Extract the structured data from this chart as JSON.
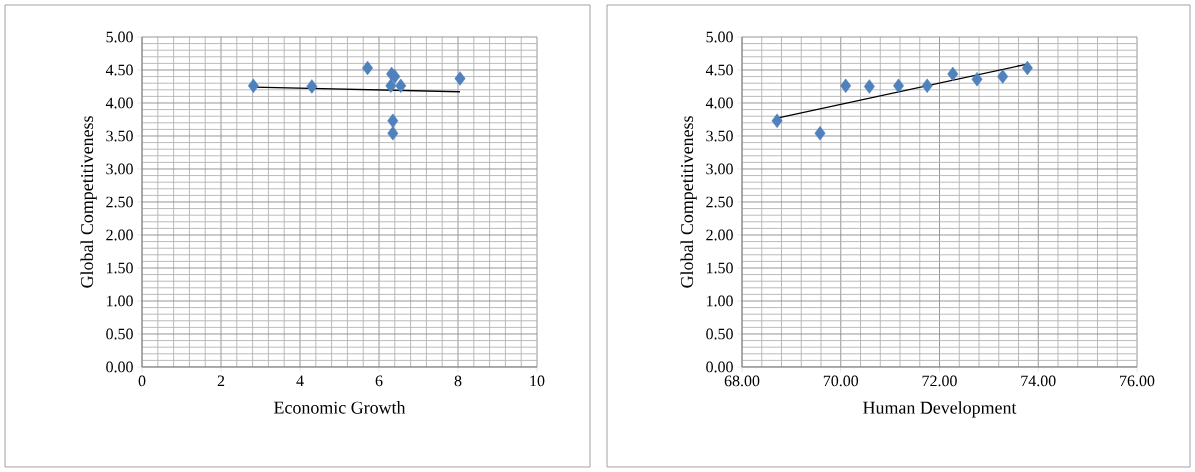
{
  "chart_data": [
    {
      "type": "scatter",
      "xlabel": "Economic Growth",
      "ylabel": "Global Competitiveness",
      "xlim": [
        0,
        10
      ],
      "xticks": [
        0,
        2,
        4,
        6,
        8,
        10
      ],
      "ylim": [
        0,
        5
      ],
      "yticks": [
        {
          "value": 0,
          "label": "0.00"
        },
        {
          "value": 0.5,
          "label": "0.50"
        },
        {
          "value": 1,
          "label": "1.00"
        },
        {
          "value": 1.5,
          "label": "1.50"
        },
        {
          "value": 2,
          "label": "2.00"
        },
        {
          "value": 2.5,
          "label": "2.50"
        },
        {
          "value": 3,
          "label": "3.00"
        },
        {
          "value": 3.5,
          "label": "3.50"
        },
        {
          "value": 4,
          "label": "4.00"
        },
        {
          "value": 4.5,
          "label": "4.50"
        },
        {
          "value": 5,
          "label": "5.00"
        }
      ],
      "grid": true,
      "series": [
        {
          "color": "#4f81bd",
          "marker": "diamond",
          "x": [
            2.82,
            4.3,
            5.71,
            6.32,
            6.4,
            8.05,
            6.3,
            6.55,
            6.35,
            6.35
          ],
          "values": [
            4.26,
            4.25,
            4.53,
            4.44,
            4.4,
            4.37,
            4.26,
            4.26,
            3.73,
            3.54
          ]
        },
        {
          "type": "line",
          "color": "#000000",
          "x": [
            2.82,
            8.05
          ],
          "values": [
            4.24,
            4.17
          ]
        }
      ]
    },
    {
      "type": "scatter",
      "xlabel": "Human Development",
      "ylabel": "Global Competitiveness",
      "xlim": [
        68,
        76
      ],
      "xticks": [
        {
          "value": 68,
          "label": "68.00"
        },
        {
          "value": 70,
          "label": "70.00"
        },
        {
          "value": 72,
          "label": "72.00"
        },
        {
          "value": 74,
          "label": "74.00"
        },
        {
          "value": 76,
          "label": "76.00"
        }
      ],
      "ylim": [
        0,
        5
      ],
      "yticks": [
        {
          "value": 0,
          "label": "0.00"
        },
        {
          "value": 0.5,
          "label": "0.50"
        },
        {
          "value": 1,
          "label": "1.00"
        },
        {
          "value": 1.5,
          "label": "1.50"
        },
        {
          "value": 2,
          "label": "2.00"
        },
        {
          "value": 2.5,
          "label": "2.50"
        },
        {
          "value": 3,
          "label": "3.00"
        },
        {
          "value": 3.5,
          "label": "3.50"
        },
        {
          "value": 4,
          "label": "4.00"
        },
        {
          "value": 4.5,
          "label": "4.50"
        },
        {
          "value": 5,
          "label": "5.00"
        }
      ],
      "grid": true,
      "series": [
        {
          "color": "#4f81bd",
          "marker": "diamond",
          "x": [
            68.71,
            69.58,
            70.1,
            70.58,
            71.17,
            71.75,
            72.27,
            72.76,
            73.28,
            73.78
          ],
          "values": [
            3.73,
            3.54,
            4.26,
            4.25,
            4.26,
            4.26,
            4.44,
            4.36,
            4.4,
            4.53
          ]
        },
        {
          "type": "line",
          "color": "#000000",
          "x": [
            68.71,
            73.78
          ],
          "values": [
            3.77,
            4.59
          ]
        }
      ]
    }
  ]
}
